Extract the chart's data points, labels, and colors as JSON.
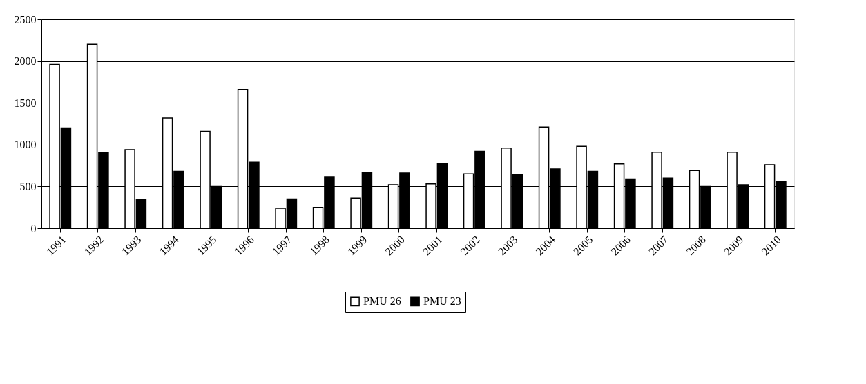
{
  "chart_data": {
    "type": "bar",
    "categories": [
      "1991",
      "1992",
      "1993",
      "1994",
      "1995",
      "1996",
      "1997",
      "1998",
      "1999",
      "2000",
      "2001",
      "2002",
      "2003",
      "2004",
      "2005",
      "2006",
      "2007",
      "2008",
      "2009",
      "2010"
    ],
    "series": [
      {
        "name": "PMU 26",
        "color": "#ffffff",
        "values": [
          1960,
          2200,
          940,
          1320,
          1160,
          1660,
          240,
          250,
          360,
          520,
          530,
          650,
          960,
          1210,
          980,
          770,
          910,
          690,
          910,
          760
        ]
      },
      {
        "name": "PMU 23",
        "color": "#000000",
        "values": [
          1200,
          910,
          340,
          680,
          500,
          790,
          350,
          610,
          670,
          660,
          770,
          920,
          640,
          710,
          680,
          590,
          600,
          500,
          520,
          560
        ]
      }
    ],
    "ylim": [
      0,
      2500
    ],
    "yticks": [
      0,
      500,
      1000,
      1500,
      2000,
      2500
    ],
    "grid": "y",
    "legend": "bottom"
  }
}
